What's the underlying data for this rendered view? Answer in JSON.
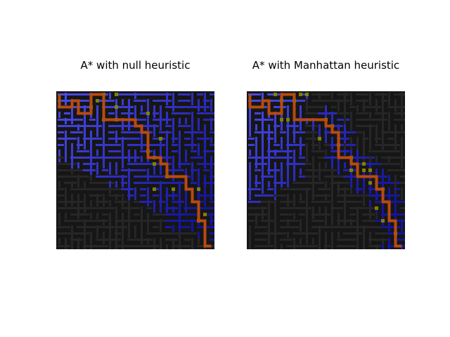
{
  "figure": {
    "panels": [
      {
        "title": "A* with null heuristic",
        "heuristic": "null"
      },
      {
        "title": "A* with Manhattan heuristic",
        "heuristic": "Manhattan"
      }
    ]
  },
  "colors": {
    "background": "#ffffff",
    "maze_wall": "#161616",
    "maze_corridor": "#262626",
    "explored_early": "#4a4ae8",
    "explored_late": "#15159a",
    "frontier": "#808000",
    "path": "#b84a10"
  }
}
